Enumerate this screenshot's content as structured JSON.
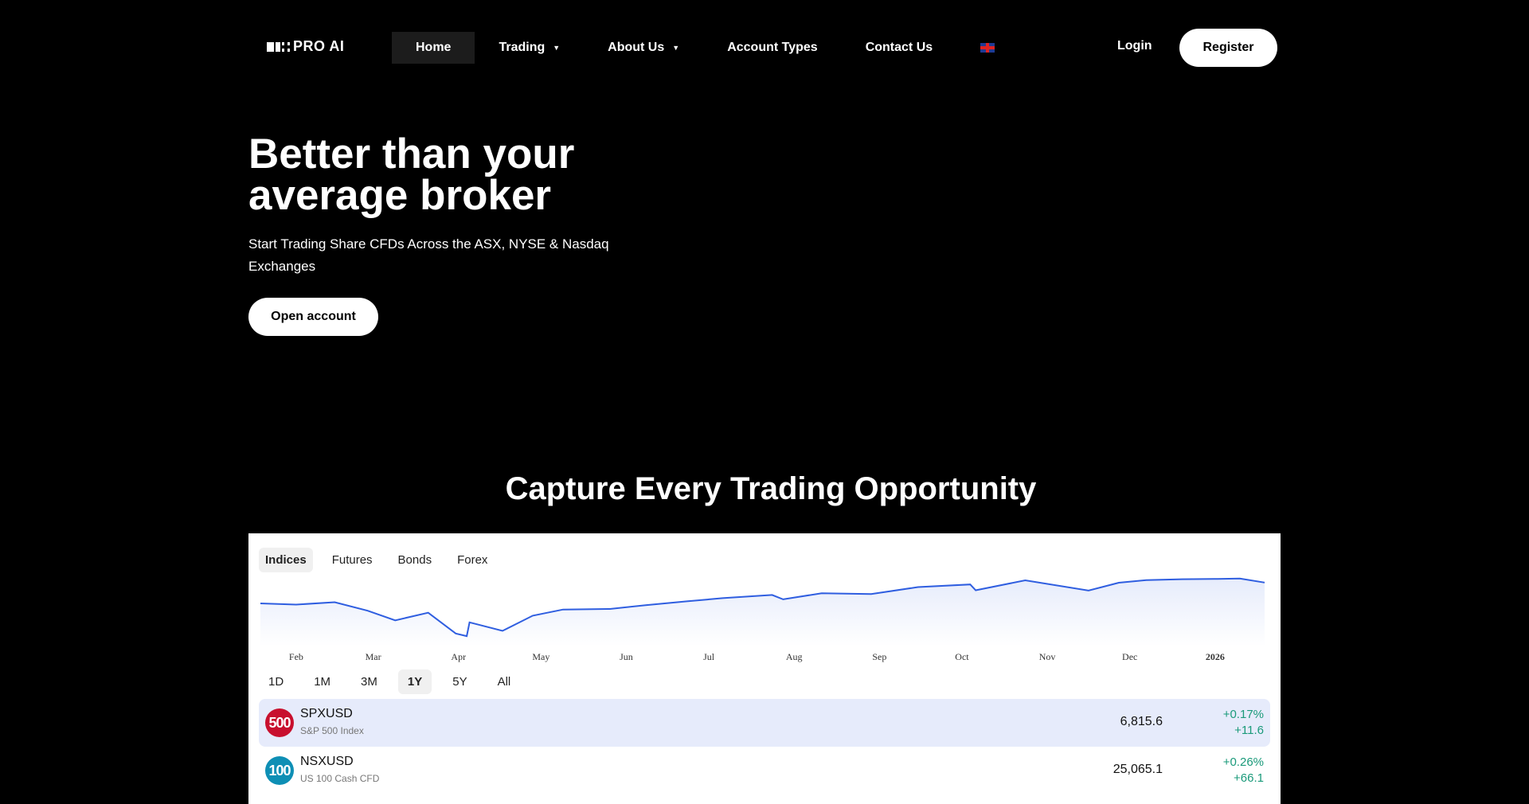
{
  "header": {
    "logo": "PRO AI",
    "nav": [
      {
        "label": "Home",
        "active": true
      },
      {
        "label": "Trading",
        "dropdown": true
      },
      {
        "label": "About Us",
        "dropdown": true
      },
      {
        "label": "Account Types"
      },
      {
        "label": "Contact Us"
      }
    ],
    "language_icon": "uk-flag-icon",
    "login": "Login",
    "register": "Register"
  },
  "hero": {
    "title": "Better than your average broker",
    "subtitle": "Start Trading Share CFDs Across the ASX, NYSE & Nasdaq Exchanges",
    "cta": "Open account"
  },
  "section": {
    "title": "Capture Every Trading Opportunity"
  },
  "widget": {
    "tabs": [
      {
        "label": "Indices",
        "active": true
      },
      {
        "label": "Futures"
      },
      {
        "label": "Bonds"
      },
      {
        "label": "Forex"
      }
    ],
    "ranges": [
      {
        "label": "1D"
      },
      {
        "label": "1M"
      },
      {
        "label": "3M"
      },
      {
        "label": "1Y",
        "active": true
      },
      {
        "label": "5Y"
      },
      {
        "label": "All"
      }
    ],
    "rows": [
      {
        "badge": "500",
        "badge_color": "#c8102e",
        "symbol": "SPXUSD",
        "name": "S&P 500 Index",
        "price": "6,815.6",
        "change_pct": "+0.17%",
        "change": "+11.6",
        "highlighted": true
      },
      {
        "badge": "100",
        "badge_color": "#0e8fb5",
        "symbol": "NSXUSD",
        "name": "US 100 Cash CFD",
        "price": "25,065.1",
        "change_pct": "+0.26%",
        "change": "+66.1"
      }
    ]
  },
  "chart_data": {
    "type": "area",
    "line_color": "#2f5ee0",
    "x_tick_labels": [
      "Feb",
      "Mar",
      "Apr",
      "May",
      "Jun",
      "Jul",
      "Aug",
      "Sep",
      "Oct",
      "Nov",
      "Dec",
      "2026"
    ],
    "series": [
      {
        "points": [
          [
            "2025-01-23",
            6100
          ],
          [
            "2025-02-05",
            6060
          ],
          [
            "2025-02-19",
            6140
          ],
          [
            "2025-03-03",
            5850
          ],
          [
            "2025-03-13",
            5520
          ],
          [
            "2025-03-25",
            5780
          ],
          [
            "2025-04-04",
            5070
          ],
          [
            "2025-04-08",
            4980
          ],
          [
            "2025-04-09",
            5450
          ],
          [
            "2025-04-21",
            5160
          ],
          [
            "2025-05-02",
            5680
          ],
          [
            "2025-05-13",
            5890
          ],
          [
            "2025-05-30",
            5910
          ],
          [
            "2025-06-12",
            6040
          ],
          [
            "2025-06-27",
            6170
          ],
          [
            "2025-07-10",
            6280
          ],
          [
            "2025-07-28",
            6390
          ],
          [
            "2025-08-01",
            6240
          ],
          [
            "2025-08-15",
            6450
          ],
          [
            "2025-09-02",
            6420
          ],
          [
            "2025-09-19",
            6660
          ],
          [
            "2025-10-08",
            6750
          ],
          [
            "2025-10-10",
            6550
          ],
          [
            "2025-10-28",
            6890
          ],
          [
            "2025-11-20",
            6540
          ],
          [
            "2025-12-01",
            6810
          ],
          [
            "2025-12-11",
            6900
          ],
          [
            "2025-12-24",
            6930
          ],
          [
            "2026-01-06",
            6940
          ],
          [
            "2026-01-14",
            6950
          ],
          [
            "2026-01-23",
            6815
          ]
        ]
      }
    ],
    "grid": false
  }
}
